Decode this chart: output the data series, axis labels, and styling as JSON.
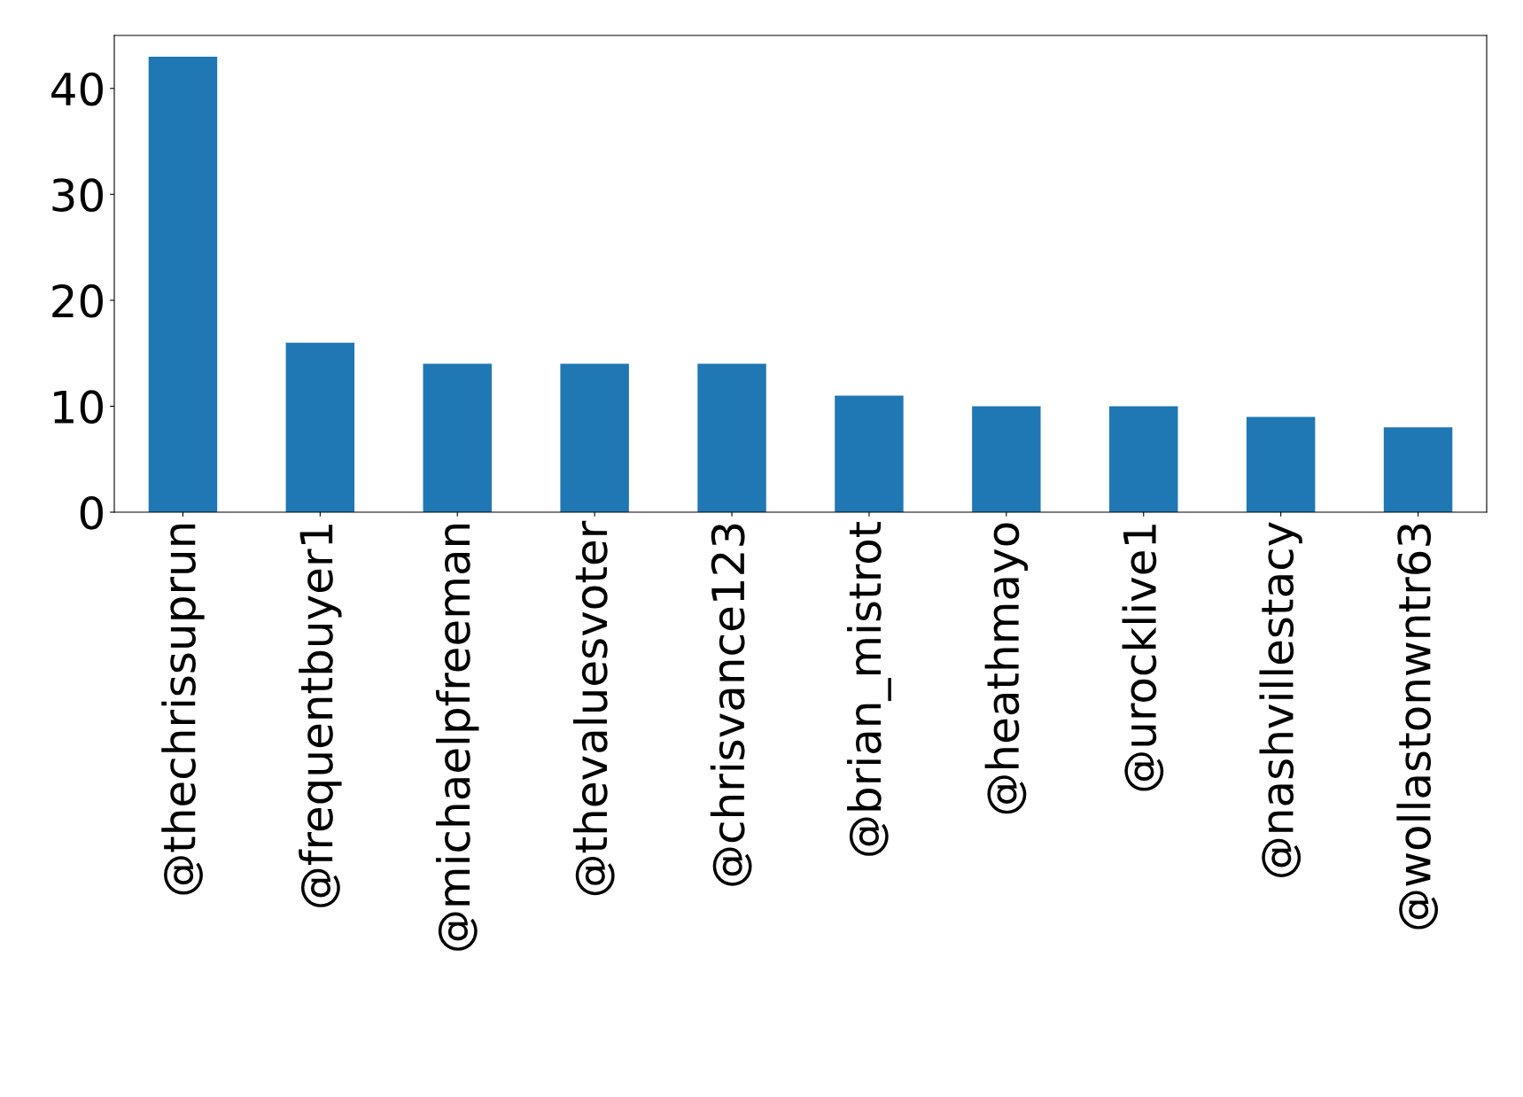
{
  "chart_data": {
    "type": "bar",
    "categories": [
      "@thechrissuprun",
      "@frequentbuyer1",
      "@michaelpfreeman",
      "@thevaluesvoter",
      "@chrisvance123",
      "@brian_mistrot",
      "@heathmayo",
      "@urocklive1",
      "@nashvillestacy",
      "@wollastonwntr63"
    ],
    "values": [
      43,
      16,
      14,
      14,
      14,
      11,
      10,
      10,
      9,
      8
    ],
    "color": "#1f77b4",
    "ylim": [
      0,
      45
    ],
    "yticks": [
      0,
      10,
      20,
      30,
      40
    ],
    "grid": false,
    "legend": false
  }
}
